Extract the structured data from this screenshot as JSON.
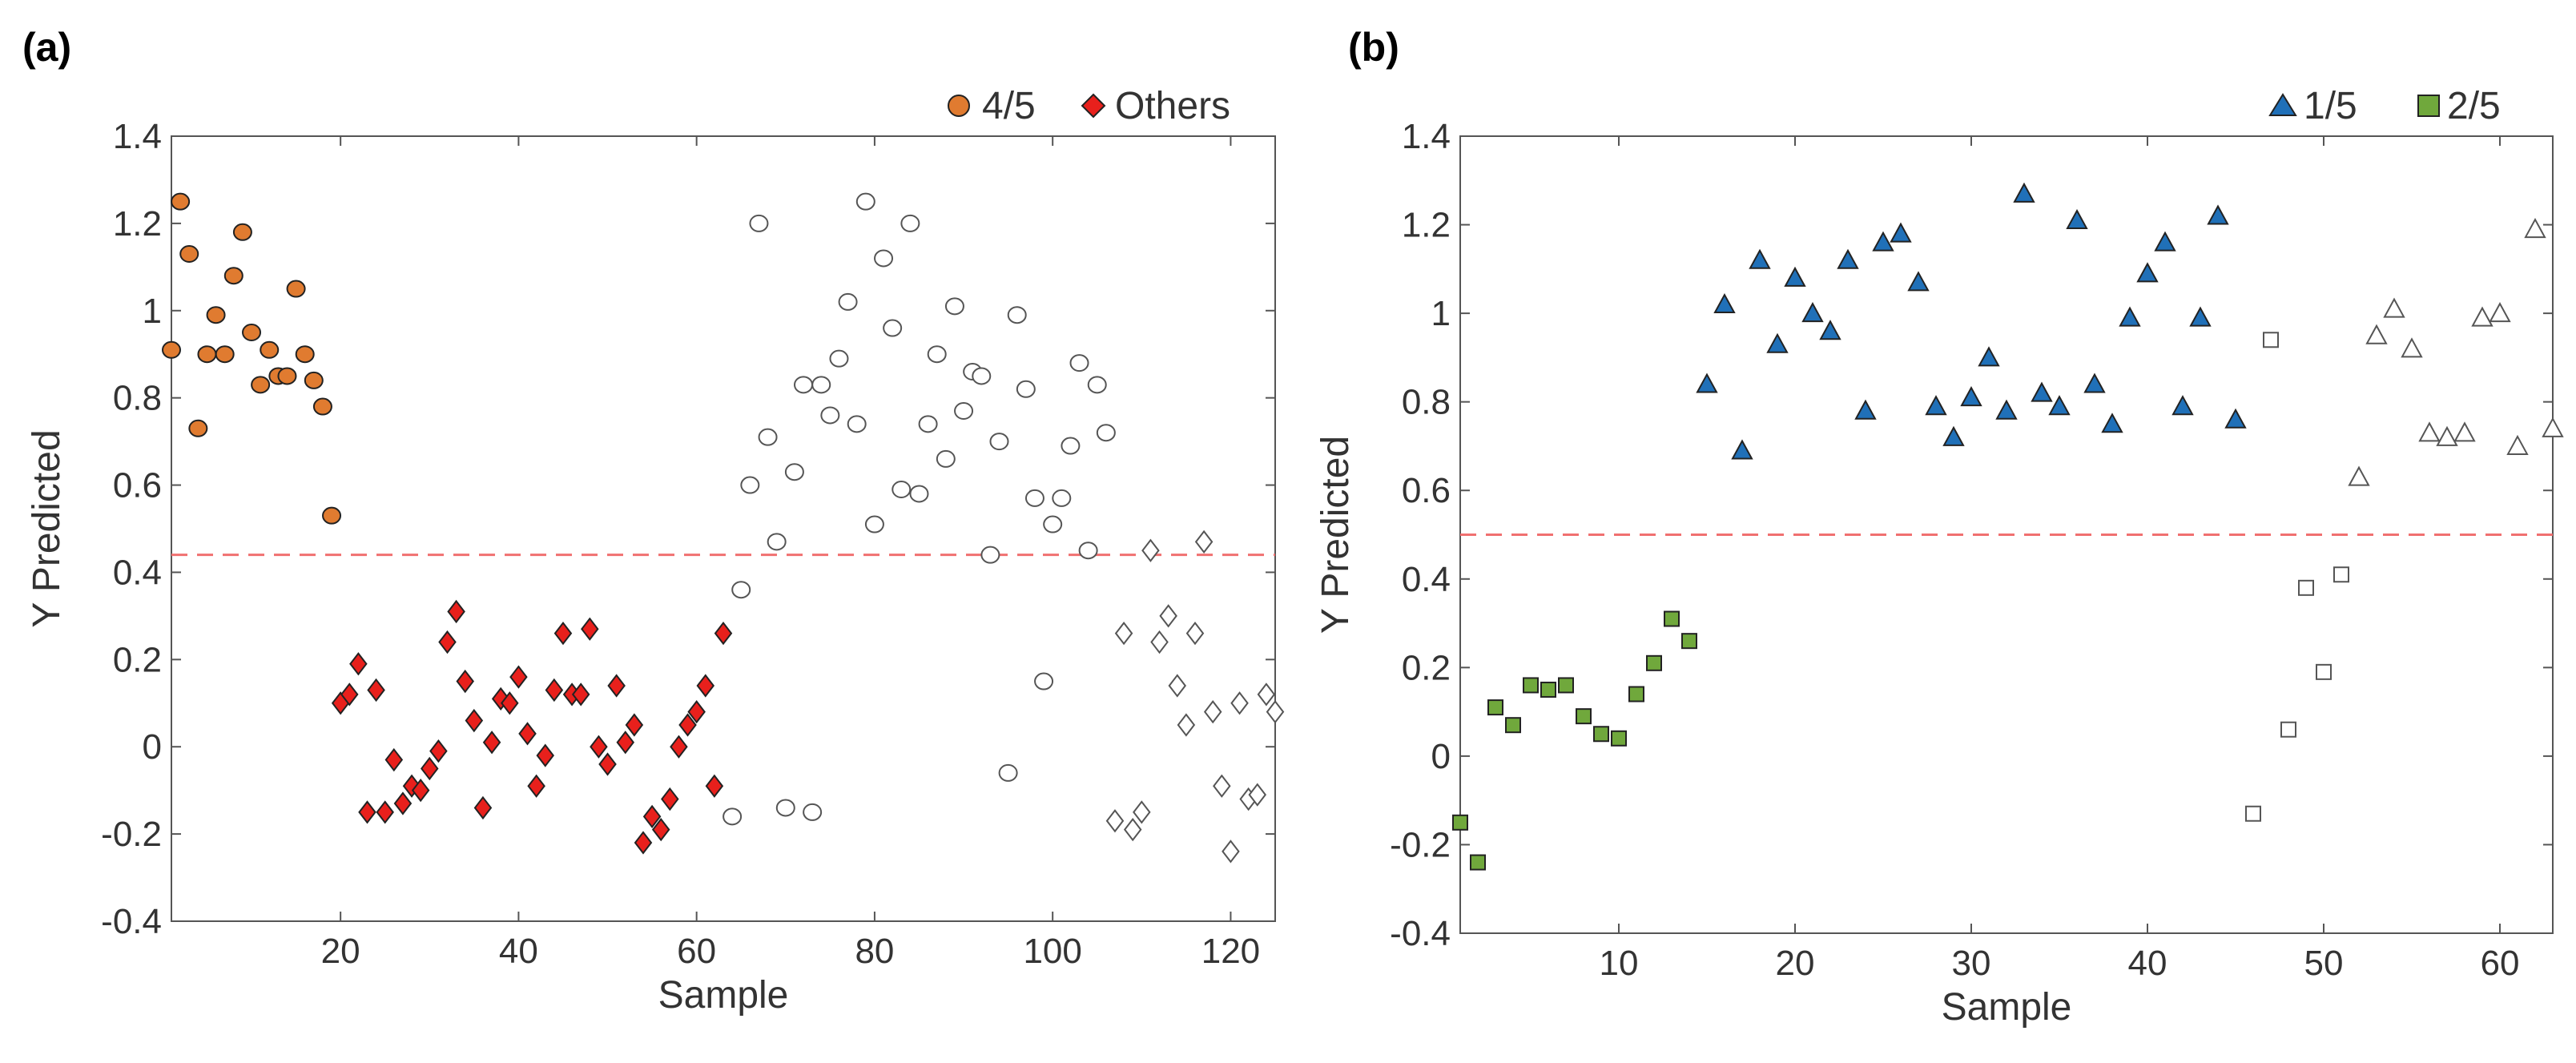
{
  "panels": [
    {
      "label": "(a)",
      "legend": [
        "4/5",
        "Others"
      ]
    },
    {
      "label": "(b)",
      "legend": [
        "1/5",
        "2/5"
      ]
    }
  ],
  "chart_data": [
    {
      "type": "scatter",
      "xlabel": "Sample",
      "ylabel": "Y Predicted",
      "xlim": [
        1,
        125
      ],
      "ylim": [
        -0.4,
        1.4
      ],
      "xticks": [
        20,
        40,
        60,
        80,
        100,
        120
      ],
      "yticks": [
        -0.4,
        -0.2,
        0,
        0.2,
        0.4,
        0.6,
        0.8,
        1,
        1.2,
        1.4
      ],
      "ytick_labels": [
        "-0.4",
        "-0.2",
        "0",
        "0.2",
        "0.4",
        "0.6",
        "0.8",
        "1",
        "1.2",
        "1.4"
      ],
      "threshold": 0.44,
      "threshold_color": "#f07070",
      "legend_position": "top-right",
      "series": [
        {
          "name": "4/5",
          "marker": "circle",
          "fill": "#e07b30",
          "stroke": "#222222",
          "x": [
            1,
            2,
            3,
            4,
            5,
            6,
            7,
            8,
            9,
            10,
            11,
            12,
            13,
            14,
            15,
            16,
            17,
            18,
            19
          ],
          "y": [
            0.91,
            1.25,
            1.13,
            0.73,
            0.9,
            0.99,
            0.9,
            1.08,
            1.18,
            0.95,
            0.83,
            0.91,
            0.85,
            0.85,
            1.05,
            0.9,
            0.84,
            0.78,
            0.53
          ]
        },
        {
          "name": "Others",
          "marker": "diamond",
          "fill": "#e8201c",
          "stroke": "#222222",
          "x": [
            20,
            21,
            22,
            23,
            24,
            25,
            26,
            27,
            28,
            29,
            30,
            31,
            32,
            33,
            34,
            35,
            36,
            37,
            38,
            39,
            40,
            41,
            42,
            43,
            44,
            45,
            46,
            47,
            48,
            49,
            50,
            51,
            52,
            53,
            54,
            55,
            56,
            57,
            58,
            59,
            60,
            61,
            62,
            63
          ],
          "y": [
            0.1,
            0.12,
            0.19,
            -0.15,
            0.13,
            -0.15,
            -0.03,
            -0.13,
            -0.09,
            -0.1,
            -0.05,
            -0.01,
            0.24,
            0.31,
            0.15,
            0.06,
            -0.14,
            0.01,
            0.11,
            0.1,
            0.16,
            0.03,
            -0.09,
            -0.02,
            0.13,
            0.26,
            0.12,
            0.12,
            0.27,
            0.0,
            -0.04,
            0.14,
            0.01,
            0.05,
            -0.22,
            -0.16,
            -0.19,
            -0.12,
            0.0,
            0.05,
            0.08,
            0.14,
            -0.09,
            0.26
          ]
        },
        {
          "name": "",
          "marker": "circle",
          "fill": "#ffffff",
          "stroke": "#555555",
          "x": [
            64,
            65,
            66,
            67,
            68,
            69,
            70,
            71,
            72,
            73,
            74,
            75,
            76,
            77,
            78,
            79,
            80,
            81,
            82,
            83,
            84,
            85,
            86,
            87,
            88,
            89,
            90,
            91,
            92,
            93,
            94,
            95,
            96,
            97,
            98,
            99,
            100,
            101,
            102,
            103,
            104,
            105,
            106
          ],
          "y": [
            -0.16,
            0.36,
            0.6,
            1.2,
            0.71,
            0.47,
            -0.14,
            0.63,
            0.83,
            -0.15,
            0.83,
            0.76,
            0.89,
            1.02,
            0.74,
            1.25,
            0.51,
            1.12,
            0.96,
            0.59,
            1.2,
            0.58,
            0.74,
            0.9,
            0.66,
            1.01,
            0.77,
            0.86,
            0.85,
            0.44,
            0.7,
            -0.06,
            0.99,
            0.82,
            0.57,
            0.15,
            0.51,
            0.57,
            0.69,
            0.88,
            0.45,
            0.83,
            0.72
          ]
        },
        {
          "name": "",
          "marker": "diamond",
          "fill": "#ffffff",
          "stroke": "#555555",
          "x": [
            107,
            108,
            109,
            110,
            111,
            112,
            113,
            114,
            115,
            116,
            117,
            118,
            119,
            120,
            121,
            122,
            123,
            124,
            125
          ],
          "y": [
            -0.17,
            0.26,
            -0.19,
            -0.15,
            0.45,
            0.24,
            0.3,
            0.14,
            0.05,
            0.26,
            0.47,
            0.08,
            -0.09,
            -0.24,
            0.1,
            -0.12,
            -0.11,
            0.12,
            0.08
          ]
        }
      ]
    },
    {
      "type": "scatter",
      "xlabel": "Sample",
      "ylabel": "Y Predicted",
      "xlim": [
        1,
        63
      ],
      "ylim": [
        -0.4,
        1.4
      ],
      "xticks": [
        10,
        20,
        30,
        40,
        50,
        60
      ],
      "yticks": [
        -0.4,
        -0.2,
        0,
        0.2,
        0.4,
        0.6,
        0.8,
        1,
        1.2,
        1.4
      ],
      "ytick_labels": [
        "-0.4",
        "-0.2",
        "0",
        "0.2",
        "0.4",
        "0.6",
        "0.8",
        "1",
        "1.2",
        "1.4"
      ],
      "threshold": 0.5,
      "threshold_color": "#f07070",
      "legend_position": "top-right",
      "series": [
        {
          "name": "2/5",
          "marker": "square",
          "fill": "#70a83c",
          "stroke": "#222222",
          "x": [
            1,
            2,
            3,
            4,
            5,
            6,
            7,
            8,
            9,
            10,
            11,
            12,
            13,
            14
          ],
          "y": [
            -0.15,
            -0.24,
            0.11,
            0.07,
            0.16,
            0.15,
            0.16,
            0.09,
            0.05,
            0.04,
            0.14,
            0.21,
            0.31,
            0.26
          ]
        },
        {
          "name": "1/5",
          "marker": "triangle",
          "fill": "#2070b8",
          "stroke": "#222222",
          "x": [
            15,
            16,
            17,
            18,
            19,
            20,
            21,
            22,
            23,
            24,
            25,
            26,
            27,
            28,
            29,
            30,
            31,
            32,
            33,
            34,
            35,
            36,
            37,
            38,
            39,
            40,
            41,
            42,
            43,
            44,
            45
          ],
          "y": [
            0.84,
            1.02,
            0.69,
            1.12,
            0.93,
            1.08,
            1.0,
            0.96,
            1.12,
            0.78,
            1.16,
            1.18,
            1.07,
            0.79,
            0.72,
            0.81,
            0.9,
            0.78,
            1.27,
            0.82,
            0.79,
            1.21,
            0.84,
            0.75,
            0.99,
            1.09,
            1.16,
            0.79,
            0.99,
            1.22,
            0.76
          ]
        },
        {
          "name": "",
          "marker": "square",
          "fill": "#ffffff",
          "stroke": "#555555",
          "x": [
            46,
            47,
            48,
            49,
            50,
            51
          ],
          "y": [
            -0.13,
            0.94,
            0.06,
            0.38,
            0.19,
            0.41
          ]
        },
        {
          "name": "",
          "marker": "triangle",
          "fill": "#ffffff",
          "stroke": "#555555",
          "x": [
            52,
            53,
            54,
            55,
            56,
            57,
            58,
            59,
            60,
            61,
            62,
            63
          ],
          "y": [
            0.63,
            0.95,
            1.01,
            0.92,
            0.73,
            0.72,
            0.73,
            0.99,
            1.0,
            0.7,
            1.19,
            0.74
          ]
        }
      ]
    }
  ]
}
